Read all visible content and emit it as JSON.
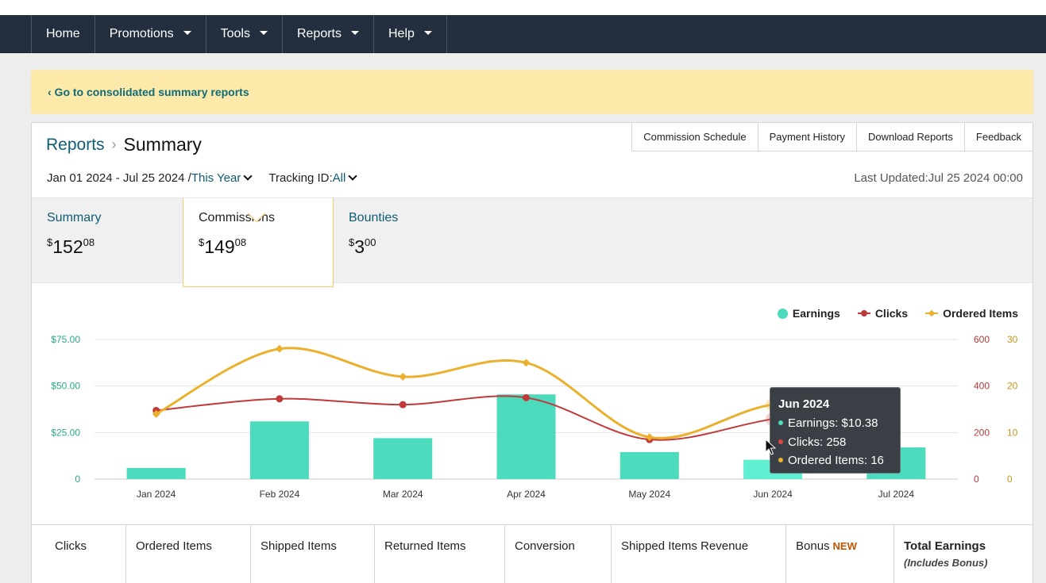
{
  "nav": {
    "items": [
      {
        "label": "Home",
        "dropdown": false
      },
      {
        "label": "Promotions",
        "dropdown": true
      },
      {
        "label": "Tools",
        "dropdown": true
      },
      {
        "label": "Reports",
        "dropdown": true
      },
      {
        "label": "Help",
        "dropdown": true
      }
    ]
  },
  "banner": {
    "link": "‹ Go to consolidated summary reports"
  },
  "breadcrumb": {
    "parent": "Reports",
    "separator": "›",
    "current": "Summary"
  },
  "top_tabs": [
    "Commission Schedule",
    "Payment History",
    "Download Reports",
    "Feedback"
  ],
  "filters": {
    "date_range": "Jan 01 2024 - Jul 25 2024 /",
    "period": "This Year",
    "tracking_label": "Tracking ID:",
    "tracking_value": "All",
    "last_updated": "Last Updated:Jul 25 2024 00:00"
  },
  "summary_cards": [
    {
      "label": "Summary",
      "currency": "$",
      "whole": "152",
      "cents": "08",
      "active": false
    },
    {
      "label": "Commissions",
      "currency": "$",
      "whole": "149",
      "cents": "08",
      "active": true
    },
    {
      "label": "Bounties",
      "currency": "$",
      "whole": "3",
      "cents": "00",
      "active": false
    }
  ],
  "colors": {
    "earnings": "#4cdbbd",
    "clicks": "#c0393b",
    "ordered": "#ebb12e",
    "teal_text": "#0f5c75",
    "nav_bg": "#232f3e"
  },
  "chart_data": {
    "type": "bar",
    "categories": [
      "Jan 2024",
      "Feb 2024",
      "Mar 2024",
      "Apr 2024",
      "May 2024",
      "Jun 2024",
      "Jul 2024"
    ],
    "series": [
      {
        "name": "Earnings",
        "type": "bar",
        "axis": "left",
        "values": [
          6.0,
          31.0,
          22.0,
          45.5,
          14.5,
          10.38,
          17.0
        ]
      },
      {
        "name": "Clicks",
        "type": "line",
        "axis": "right1",
        "values": [
          295,
          345,
          320,
          350,
          170,
          258,
          325
        ]
      },
      {
        "name": "Ordered Items",
        "type": "line",
        "axis": "right2",
        "values": [
          14,
          28,
          22,
          25,
          9,
          16,
          16
        ]
      }
    ],
    "y_left": {
      "min": 0,
      "max": 75,
      "ticks": [
        "0",
        "$25.00",
        "$50.00",
        "$75.00"
      ]
    },
    "y_right1": {
      "min": 0,
      "max": 600,
      "ticks": [
        "0",
        "200",
        "400",
        "600"
      ]
    },
    "y_right2": {
      "min": 0,
      "max": 30,
      "ticks": [
        "0",
        "10",
        "20",
        "30"
      ]
    },
    "grid": true,
    "legend": "top-right",
    "legend_labels": [
      "Earnings",
      "Clicks",
      "Ordered Items"
    ],
    "highlight_index": 5
  },
  "tooltip": {
    "title": "Jun 2024",
    "earnings": "Earnings: $10.38",
    "clicks": "Clicks: 258",
    "ordered": "Ordered Items: 16"
  },
  "table_headers": [
    {
      "label": "Clicks"
    },
    {
      "label": "Ordered Items"
    },
    {
      "label": "Shipped Items"
    },
    {
      "label": "Returned Items"
    },
    {
      "label": "Conversion"
    },
    {
      "label": "Shipped Items Revenue"
    },
    {
      "label": "Bonus",
      "badge": "NEW"
    },
    {
      "label": "Total Earnings",
      "sub": "(Includes Bonus)"
    }
  ]
}
